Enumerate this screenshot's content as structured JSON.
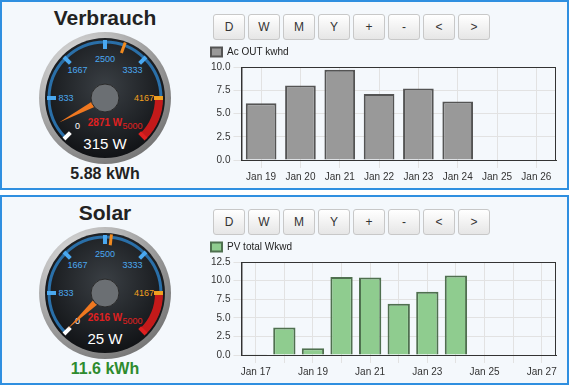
{
  "panels": [
    {
      "title": "Verbrauch",
      "buttons": [
        "D",
        "W",
        "M",
        "Y",
        "+",
        "-",
        "<",
        ">"
      ],
      "gauge": {
        "min": 0,
        "max": 5000,
        "ticks": [
          0,
          833,
          1667,
          2500,
          3333,
          4167,
          5000
        ],
        "value": 315,
        "label": "315 W",
        "peak": {
          "value": 2871,
          "label": "2871 W"
        }
      },
      "energy": {
        "text": "5.88 kWh",
        "color": "#222222"
      }
    },
    {
      "title": "Solar",
      "buttons": [
        "D",
        "W",
        "M",
        "Y",
        "+",
        "-",
        "<",
        ">"
      ],
      "gauge": {
        "min": 0,
        "max": 5000,
        "ticks": [
          0,
          833,
          1667,
          2500,
          3333,
          4167,
          5000
        ],
        "value": 25,
        "label": "25 W",
        "peak": {
          "value": 2616,
          "label": "2616 W"
        }
      },
      "energy": {
        "text": "11.6 kWh",
        "color": "#2e8b2e"
      }
    }
  ],
  "chart_data": [
    {
      "type": "bar",
      "categories": [
        "Jan 19",
        "Jan 20",
        "Jan 21",
        "Jan 22",
        "Jan 23",
        "Jan 24",
        "Jan 25",
        "Jan 26"
      ],
      "series": [
        {
          "name": "Ac OUT kwhd",
          "color": "#999999",
          "values": [
            6.1,
            8.0,
            9.7,
            7.1,
            7.7,
            6.3,
            null,
            null
          ]
        }
      ],
      "ylim": [
        0,
        10
      ],
      "yticks": [
        {
          "value": 0,
          "label": "0.0"
        },
        2.5,
        {
          "value": 5,
          "label": "5.0"
        },
        7.5,
        {
          "value": 10,
          "label": "10.0"
        }
      ],
      "grid": true,
      "legend": "top-left"
    },
    {
      "type": "bar",
      "categories": [
        "Jan 17",
        null,
        "Jan 19",
        null,
        "Jan 21",
        null,
        "Jan 23",
        null,
        "Jan 25",
        null,
        "Jan 27"
      ],
      "series": [
        {
          "name": "PV total Wkwd",
          "color": "#8fcc8f",
          "values": [
            0.1,
            3.7,
            0.9,
            10.5,
            10.4,
            6.9,
            8.5,
            10.7,
            null,
            null,
            null
          ]
        }
      ],
      "ylim": [
        0,
        12.5
      ],
      "yticks": [
        {
          "value": 0,
          "label": "0.0"
        },
        2.5,
        {
          "value": 5,
          "label": "5.0"
        },
        7.5,
        {
          "value": 10,
          "label": "10.0"
        },
        12.5
      ],
      "grid": true,
      "legend": "top-left"
    }
  ]
}
